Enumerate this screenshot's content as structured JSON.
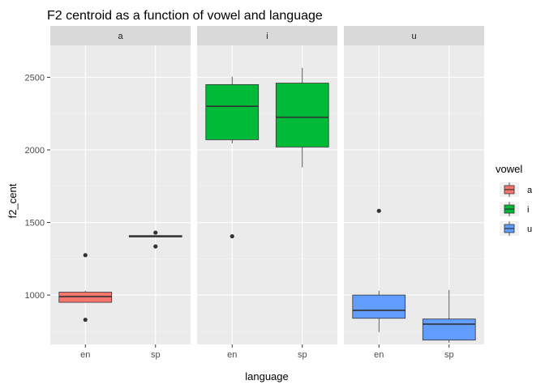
{
  "chart_data": {
    "type": "boxplot",
    "title": "F2 centroid as a function of vowel and language",
    "xlabel": "language",
    "ylabel": "f2_cent",
    "ylim": [
      660,
      2720
    ],
    "yticks": [
      1000,
      1500,
      2000,
      2500
    ],
    "categories": [
      "en",
      "sp"
    ],
    "legend": {
      "title": "vowel",
      "position": "right",
      "items": [
        {
          "label": "a",
          "color": "#F8766D"
        },
        {
          "label": "i",
          "color": "#00BA38"
        },
        {
          "label": "u",
          "color": "#619CFF"
        }
      ]
    },
    "facets": [
      {
        "label": "a",
        "color": "#F8766D",
        "boxes": [
          {
            "category": "en",
            "q1": 950,
            "median": 990,
            "q3": 1020,
            "whisker_low": 950,
            "whisker_high": 1030,
            "outliers": [
              1275,
              830
            ]
          },
          {
            "category": "sp",
            "q1": 1400,
            "median": 1405,
            "q3": 1410,
            "whisker_low": 1400,
            "whisker_high": 1410,
            "outliers": [
              1430,
              1335
            ]
          }
        ]
      },
      {
        "label": "i",
        "color": "#00BA38",
        "boxes": [
          {
            "category": "en",
            "q1": 2070,
            "median": 2300,
            "q3": 2450,
            "whisker_low": 2045,
            "whisker_high": 2505,
            "outliers": [
              1405
            ]
          },
          {
            "category": "sp",
            "q1": 2020,
            "median": 2225,
            "q3": 2460,
            "whisker_low": 1880,
            "whisker_high": 2565,
            "outliers": []
          }
        ]
      },
      {
        "label": "u",
        "color": "#619CFF",
        "boxes": [
          {
            "category": "en",
            "q1": 840,
            "median": 895,
            "q3": 1000,
            "whisker_low": 745,
            "whisker_high": 1030,
            "outliers": [
              1580
            ]
          },
          {
            "category": "sp",
            "q1": 690,
            "median": 800,
            "q3": 835,
            "whisker_low": 670,
            "whisker_high": 1035,
            "outliers": []
          }
        ]
      }
    ]
  }
}
